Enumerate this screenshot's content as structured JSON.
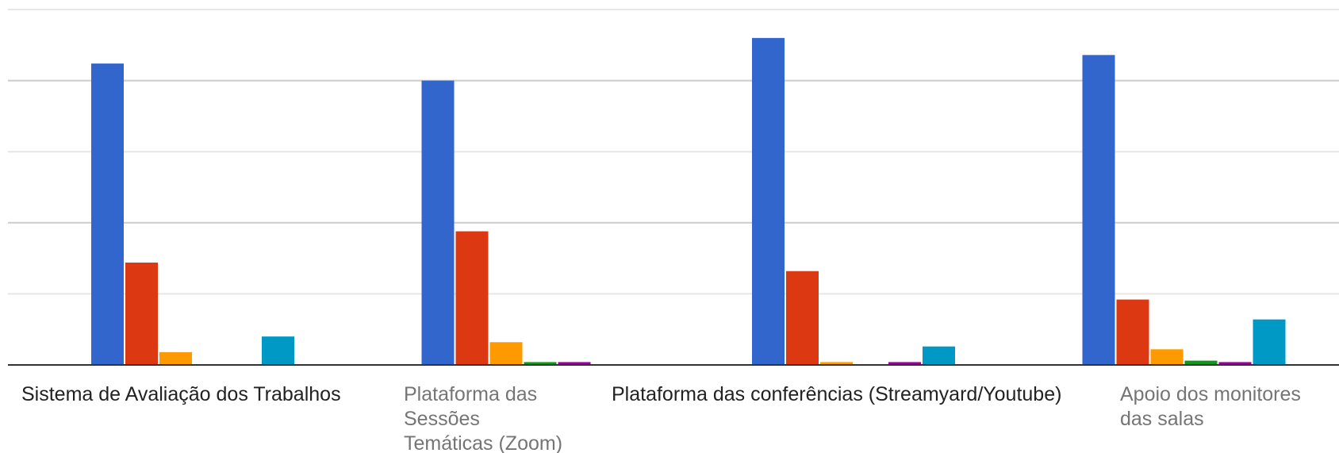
{
  "chart_data": {
    "type": "bar",
    "categories": [
      {
        "lines": [
          "Sistema de Avaliação dos Trabalhos"
        ],
        "color": "#222222"
      },
      {
        "lines": [
          "Plataforma das",
          "Sessões",
          "Temáticas (Zoom)"
        ],
        "color": "#757575"
      },
      {
        "lines": [
          "Plataforma das conferências (Streamyard/Youtube)"
        ],
        "color": "#222222"
      },
      {
        "lines": [
          "Apoio dos monitores",
          "das salas"
        ],
        "color": "#757575"
      }
    ],
    "ylim": [
      0,
      125
    ],
    "yticks": [
      0,
      25,
      50,
      75,
      100,
      125
    ],
    "series": [
      {
        "color": "#3366cc",
        "values": [
          106,
          100,
          115,
          109
        ]
      },
      {
        "color": "#dc3912",
        "values": [
          36,
          47,
          33,
          23
        ]
      },
      {
        "color": "#ff9900",
        "values": [
          4.5,
          8,
          1,
          5.5
        ]
      },
      {
        "color": "#109618",
        "values": [
          0,
          1,
          0,
          1.5
        ]
      },
      {
        "color": "#990099",
        "values": [
          0,
          1,
          1,
          1
        ]
      },
      {
        "color": "#0099c6",
        "values": [
          10,
          0,
          6.5,
          16
        ]
      }
    ]
  }
}
